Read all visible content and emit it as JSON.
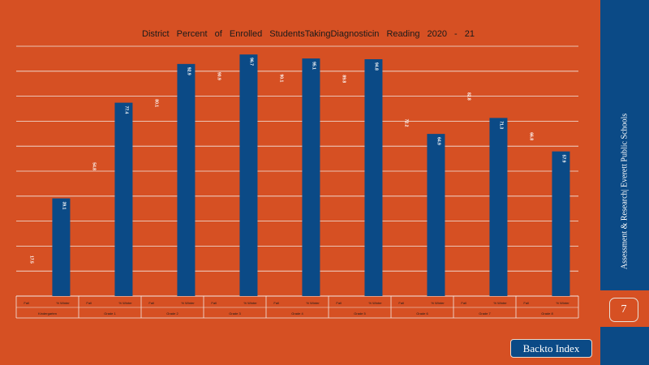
{
  "colors": {
    "background": "#d65023",
    "bar": "#0b4a86",
    "sidebar": "#0b4a86",
    "grid": "#f2e9e4",
    "label_fall": "#ffffff"
  },
  "title": "District    Percent    of Enrolled    StudentsTakingDiagnosticin          Reading    2020  -  21",
  "sidebar": {
    "org": "Assessment & Research|  Everett  Public Schools",
    "page_number": "7"
  },
  "back_button": "Backto Index",
  "chart_data": {
    "type": "bar",
    "title": "District    Percent    of Enrolled    StudentsTakingDiagnosticin          Reading    2020  -  21",
    "xlabel": "",
    "ylabel": "",
    "ylim": [
      0,
      100
    ],
    "grid": true,
    "groups": [
      {
        "name": "Kindergarten",
        "fall": 17.5,
        "winter": 39.1
      },
      {
        "name": "Grade    1",
        "fall": 54.8,
        "winter": 77.4
      },
      {
        "name": "Grade    2",
        "fall": 80.1,
        "winter": 92.9
      },
      {
        "name": "Grade    3",
        "fall": 90.9,
        "winter": 96.7
      },
      {
        "name": "Grade    4",
        "fall": 90.1,
        "winter": 95.1
      },
      {
        "name": "Grade    5",
        "fall": 89.8,
        "winter": 94.8
      },
      {
        "name": "Grade    6",
        "fall": 72.2,
        "winter": 64.9
      },
      {
        "name": "Grade    7",
        "fall": 82.8,
        "winter": 71.3
      },
      {
        "name": "Grade    8",
        "fall": 66.8,
        "winter": 57.9
      }
    ],
    "series": [
      {
        "name": "Fall",
        "values": [
          17.5,
          54.8,
          80.1,
          90.9,
          90.1,
          89.8,
          72.2,
          82.8,
          66.8
        ]
      },
      {
        "name": "% Winter",
        "values": [
          39.1,
          77.4,
          92.9,
          96.7,
          95.1,
          94.8,
          64.9,
          71.3,
          57.9
        ]
      }
    ],
    "x_labels": [
      "Fall",
      "% Winter"
    ],
    "label_format_fall": "{v}",
    "label_format_winter": "{v}"
  }
}
